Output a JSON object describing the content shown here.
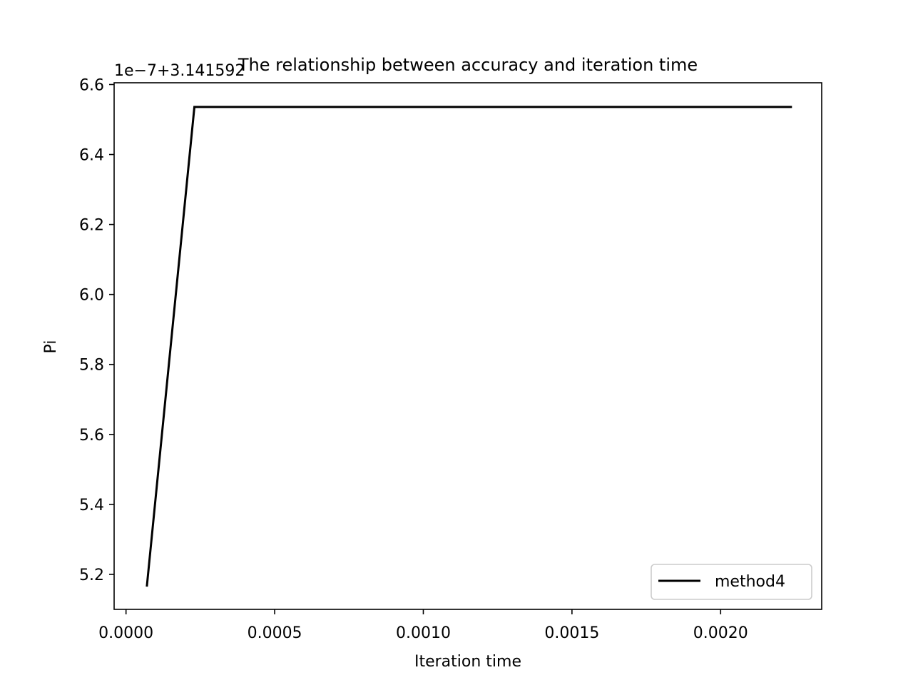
{
  "chart_data": {
    "type": "line",
    "title": "The relationship between accuracy and iteration time",
    "xlabel": "Iteration time",
    "ylabel": "Pi",
    "offset_label": "1e−7+3.141592",
    "xlim": [
      -4e-05,
      0.00234
    ],
    "ylim": [
      5.1,
      6.605
    ],
    "xticks": [
      0.0,
      0.0005,
      0.001,
      0.0015,
      0.002
    ],
    "xtick_labels": [
      "0.0000",
      "0.0005",
      "0.0010",
      "0.0015",
      "0.0020"
    ],
    "yticks": [
      5.2,
      5.4,
      5.6,
      5.8,
      6.0,
      6.2,
      6.4,
      6.6
    ],
    "ytick_labels": [
      "5.2",
      "5.4",
      "5.6",
      "5.8",
      "6.0",
      "6.2",
      "6.4",
      "6.6"
    ],
    "grid": false,
    "legend_position": "lower-right",
    "series": [
      {
        "name": "method4",
        "color": "#000000",
        "x": [
          7e-05,
          0.00023,
          0.00224
        ],
        "y": [
          5.165,
          6.536,
          6.536
        ]
      }
    ]
  }
}
